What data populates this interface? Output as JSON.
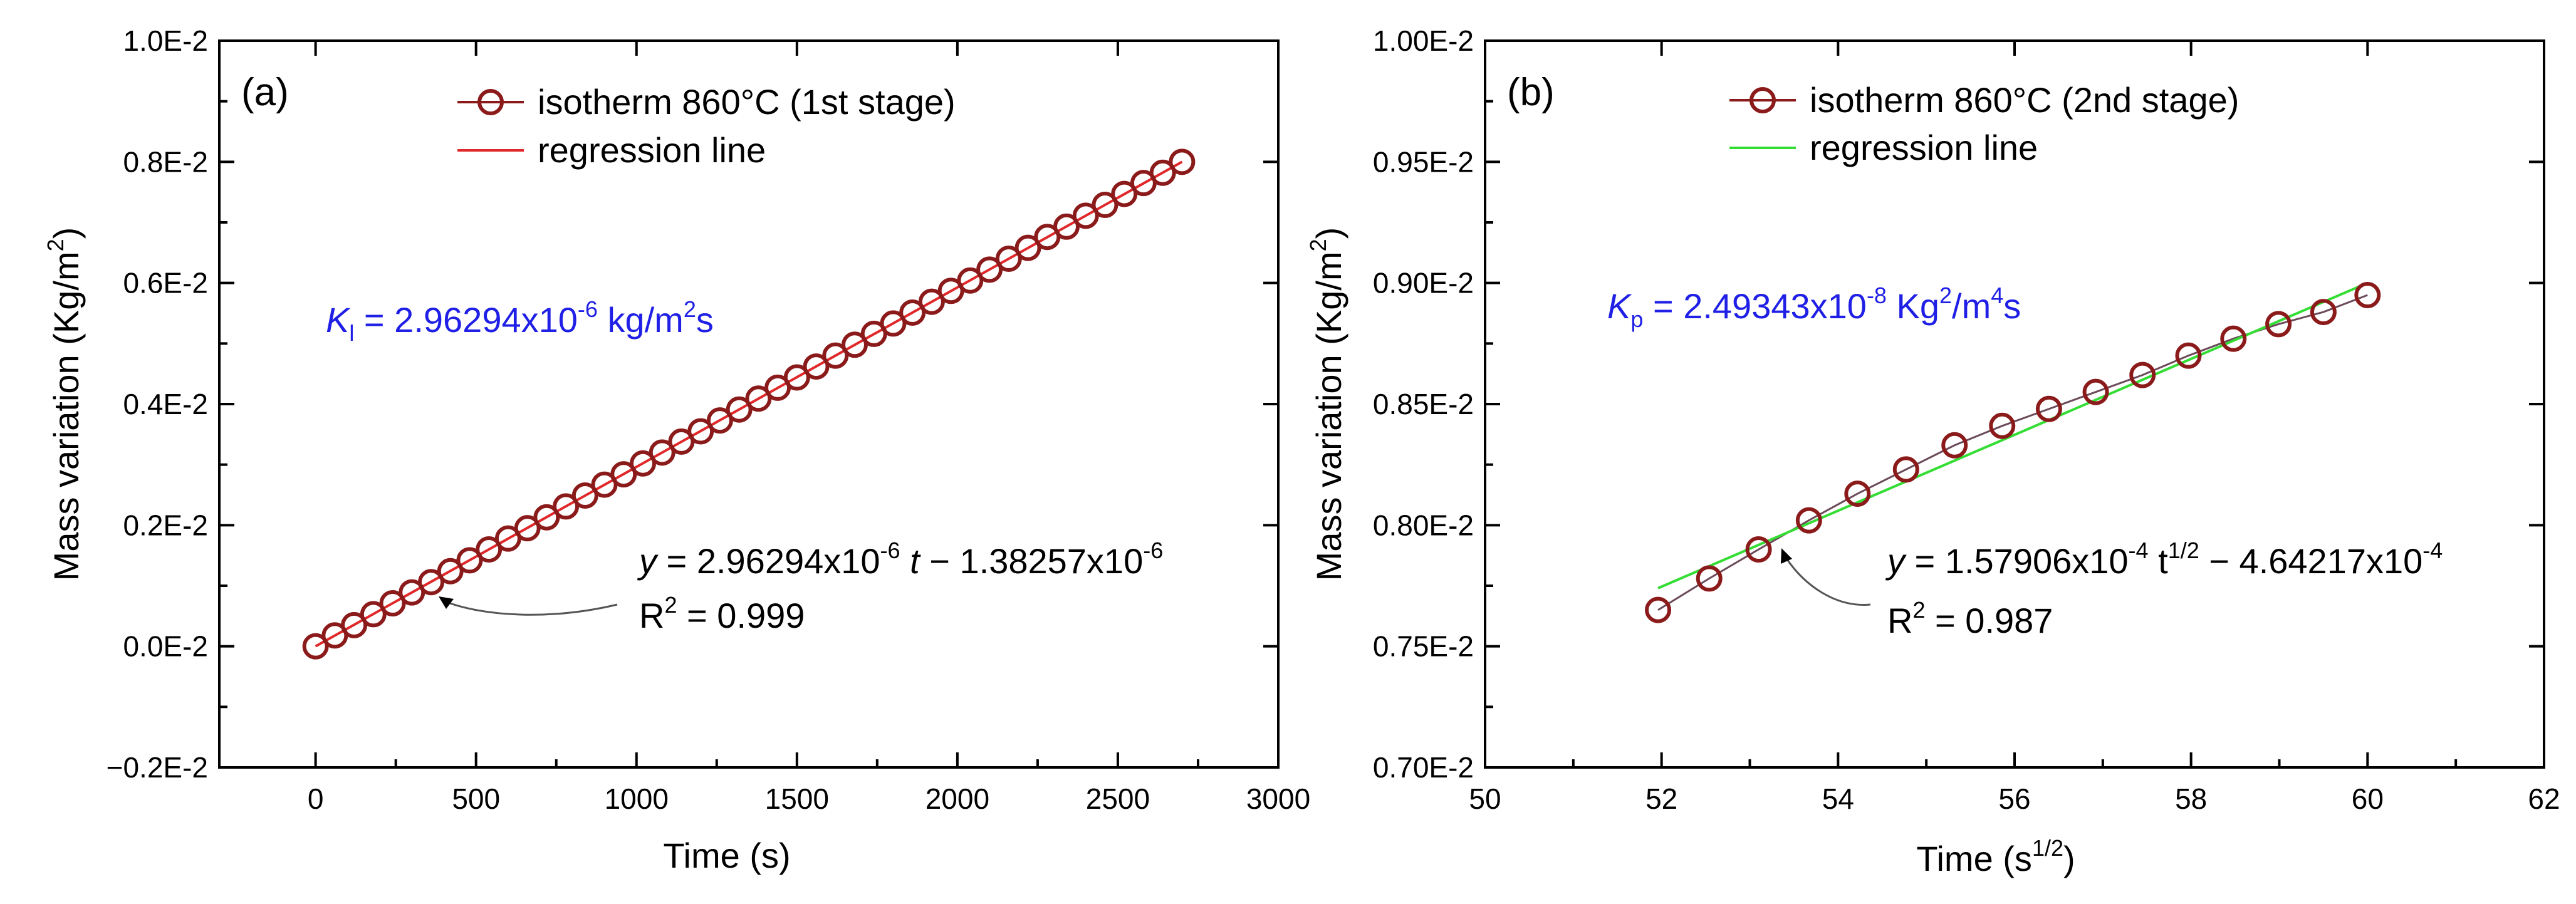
{
  "chart_data": [
    {
      "type": "scatter",
      "panel_label": "(a)",
      "xlabel": "Time (s)",
      "ylabel": "Mass variation (Kg/m",
      "ylabel_sup": "2",
      "ylabel_end": ")",
      "xlim": [
        -300,
        3000
      ],
      "ylim": [
        -0.002,
        0.01
      ],
      "xticks": [
        0,
        500,
        1000,
        1500,
        2000,
        2500,
        3000
      ],
      "xtick_labels": [
        "0",
        "500",
        "1000",
        "1500",
        "2000",
        "2500",
        "3000"
      ],
      "yticks": [
        -0.002,
        0.0,
        0.002,
        0.004,
        0.006,
        0.008,
        0.01
      ],
      "ytick_labels": [
        "−0.2E-2",
        "0.0E-2",
        "0.2E-2",
        "0.4E-2",
        "0.6E-2",
        "0.8E-2",
        "1.0E-2"
      ],
      "legend": {
        "placement": "top-center",
        "entries": [
          {
            "label": "isotherm 860°C (1st stage)",
            "style": "line-marker",
            "color": "#8b1a1a"
          },
          {
            "label": "regression line",
            "style": "line",
            "color": "#e0282a"
          }
        ]
      },
      "rate_text": {
        "prefix": "K",
        "sub": "l",
        "mid": " = 2.96294x10",
        "exp": "-6",
        "unit": " kg/m",
        "unit_exp": "2",
        "unit_end": "s"
      },
      "equation": {
        "line1_prefix": "y",
        "line1_a": " = 2.96294x10",
        "line1_a_exp": "-6",
        "line1_var": " t",
        "line1_b": " − 1.38257x10",
        "line1_b_exp": "-6",
        "line2": "R",
        "line2_exp": "2",
        "line2_end": " = 0.999"
      },
      "series": [
        {
          "name": "isotherm 860°C (1st stage)",
          "color": "#8b1a1a",
          "x": [
            0,
            60,
            120,
            180,
            240,
            300,
            360,
            420,
            480,
            540,
            600,
            660,
            720,
            780,
            840,
            900,
            960,
            1020,
            1080,
            1140,
            1200,
            1260,
            1320,
            1380,
            1440,
            1500,
            1560,
            1620,
            1680,
            1740,
            1800,
            1860,
            1920,
            1980,
            2040,
            2100,
            2160,
            2220,
            2280,
            2340,
            2400,
            2460,
            2520,
            2580,
            2640,
            2700
          ],
          "y": [
            0.0,
            0.00018,
            0.00035,
            0.00053,
            0.00071,
            0.00089,
            0.00106,
            0.00124,
            0.00142,
            0.0016,
            0.00178,
            0.00195,
            0.00213,
            0.00231,
            0.00249,
            0.00267,
            0.00284,
            0.00302,
            0.0032,
            0.00338,
            0.00355,
            0.00373,
            0.00391,
            0.00409,
            0.00427,
            0.00444,
            0.00462,
            0.0048,
            0.00498,
            0.00516,
            0.00533,
            0.00551,
            0.00569,
            0.00587,
            0.00604,
            0.00622,
            0.0064,
            0.00658,
            0.00676,
            0.00693,
            0.00711,
            0.00729,
            0.00747,
            0.00765,
            0.00782,
            0.008
          ]
        },
        {
          "name": "regression line",
          "color": "#e0282a",
          "x": [
            0,
            2700
          ],
          "y": [
            0.0,
            0.008
          ]
        }
      ]
    },
    {
      "type": "scatter",
      "panel_label": "(b)",
      "xlabel": "Time (s",
      "xlabel_sup": "1/2",
      "xlabel_end": ")",
      "ylabel": "Mass variation (Kg/m",
      "ylabel_sup": "2",
      "ylabel_end": ")",
      "xlim": [
        50,
        62
      ],
      "ylim": [
        0.007,
        0.01
      ],
      "xticks": [
        50,
        52,
        54,
        56,
        58,
        60,
        62
      ],
      "xtick_labels": [
        "50",
        "52",
        "54",
        "56",
        "58",
        "60",
        "62"
      ],
      "yticks": [
        0.007,
        0.0075,
        0.008,
        0.0085,
        0.009,
        0.0095,
        0.01
      ],
      "ytick_labels": [
        "0.70E-2",
        "0.75E-2",
        "0.80E-2",
        "0.85E-2",
        "0.90E-2",
        "0.95E-2",
        "1.00E-2"
      ],
      "legend": {
        "placement": "top-center",
        "entries": [
          {
            "label": "isotherm 860°C (2nd stage)",
            "style": "line-marker",
            "color": "#8b1a1a"
          },
          {
            "label": "regression line",
            "style": "line",
            "color": "#33dd33"
          }
        ]
      },
      "rate_text": {
        "prefix": "K",
        "sub": "p",
        "mid": " = 2.49343x10",
        "exp": "-8",
        "unit": " Kg",
        "unit_exp": "2",
        "unit_end": "/m",
        "unit_exp2": "4",
        "unit_end2": "s"
      },
      "equation": {
        "line1_prefix": "y",
        "line1_a": " = 1.57906x10",
        "line1_a_exp": "-4",
        "line1_var": " t",
        "line1_var_exp": "1/2",
        "line1_b": " − 4.64217x10",
        "line1_b_exp": "-4",
        "line2": "R",
        "line2_exp": "2",
        "line2_end": " = 0.987"
      },
      "series": [
        {
          "name": "isotherm 860°C (2nd stage)",
          "color": "#8b1a1a",
          "x": [
            51.96,
            52.54,
            53.1,
            53.67,
            54.22,
            54.77,
            55.32,
            55.86,
            56.39,
            56.92,
            57.45,
            57.97,
            58.48,
            58.99,
            59.5,
            60.0
          ],
          "y": [
            0.00765,
            0.00778,
            0.0079,
            0.00802,
            0.00813,
            0.00823,
            0.00833,
            0.00841,
            0.00848,
            0.00855,
            0.00862,
            0.0087,
            0.00877,
            0.00883,
            0.00888,
            0.00895
          ]
        },
        {
          "name": "regression line",
          "color": "#33dd33",
          "x": [
            51.96,
            60.0
          ],
          "y": [
            0.00774,
            0.009
          ]
        }
      ]
    }
  ]
}
